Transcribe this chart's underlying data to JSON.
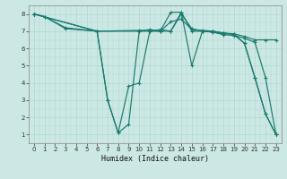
{
  "xlabel": "Humidex (Indice chaleur)",
  "bg_color": "#cce8e4",
  "grid_color": "#b0d8d2",
  "line_color": "#1a7a6e",
  "xlim": [
    -0.5,
    23.5
  ],
  "ylim": [
    0.5,
    8.5
  ],
  "xticks": [
    0,
    1,
    2,
    3,
    4,
    5,
    6,
    7,
    8,
    9,
    10,
    11,
    12,
    13,
    14,
    15,
    16,
    17,
    18,
    19,
    20,
    21,
    22,
    23
  ],
  "yticks": [
    1,
    2,
    3,
    4,
    5,
    6,
    7,
    8
  ],
  "series": [
    {
      "x": [
        0,
        1,
        3,
        6,
        7,
        8,
        9,
        10,
        11,
        12,
        13,
        14,
        15,
        16,
        17,
        18,
        19,
        20,
        21,
        22,
        23
      ],
      "y": [
        8,
        7.85,
        7.2,
        7.0,
        3.0,
        1.1,
        1.6,
        7.0,
        7.1,
        7.0,
        8.1,
        8.1,
        7.0,
        7.0,
        6.95,
        6.85,
        6.85,
        6.3,
        4.3,
        2.2,
        1.0
      ]
    },
    {
      "x": [
        0,
        1,
        3,
        6,
        10,
        11,
        12,
        13,
        14,
        15,
        16,
        17,
        18,
        19,
        20,
        21,
        22,
        23
      ],
      "y": [
        8,
        7.85,
        7.15,
        7.0,
        7.05,
        7.05,
        7.0,
        7.55,
        7.7,
        7.1,
        7.05,
        7.0,
        6.9,
        6.85,
        6.7,
        6.5,
        6.5,
        6.5
      ]
    },
    {
      "x": [
        0,
        6,
        10,
        11,
        12,
        13,
        14,
        15,
        16,
        17,
        18,
        19,
        20,
        21,
        22,
        23
      ],
      "y": [
        8,
        7.0,
        7.0,
        7.0,
        7.0,
        7.0,
        8.0,
        7.15,
        7.0,
        6.95,
        6.8,
        6.75,
        6.6,
        6.35,
        4.3,
        1.0
      ]
    },
    {
      "x": [
        0,
        6,
        7,
        8,
        9,
        10,
        11,
        12,
        13,
        14,
        15,
        16,
        17,
        18,
        19,
        20,
        21,
        22,
        23
      ],
      "y": [
        8,
        7.0,
        3.0,
        1.1,
        3.8,
        4.0,
        7.0,
        7.1,
        7.0,
        8.1,
        5.0,
        7.0,
        7.0,
        6.9,
        6.8,
        6.3,
        4.3,
        2.2,
        1.0
      ]
    }
  ]
}
